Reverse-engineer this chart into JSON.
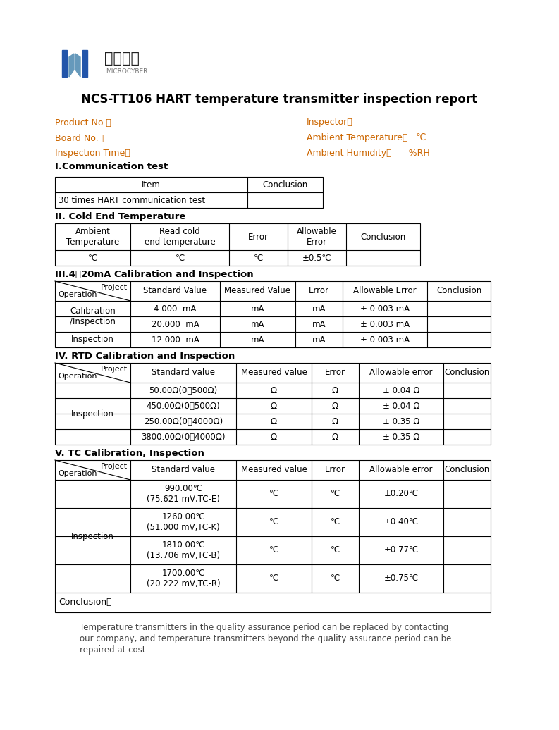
{
  "title": "NCS-TT106 HART temperature transmitter inspection report",
  "logo_text_cn": "中科博微",
  "logo_text_en": "MICROCYBER",
  "field_left1": "Product No.：",
  "field_left2": "Board No.：",
  "field_left3": "Inspection Time：",
  "field_right1": "Inspector：",
  "field_right2": "Ambient Temperature：   ℃",
  "field_right3": "Ambient Humidity：      %RH",
  "section1_title": "I.Communication test",
  "comm_header1": "Item",
  "comm_header2": "Conclusion",
  "comm_row1": "30 times HART communication test",
  "section2_title": "II. Cold End Temperature",
  "cold_h1": "Ambient\nTemperature",
  "cold_h2": "Read cold\nend temperature",
  "cold_h3": "Error",
  "cold_h4": "Allowable\nError",
  "cold_h5": "Conclusion",
  "cold_d1": "℃",
  "cold_d2": "℃",
  "cold_d3": "℃",
  "cold_d4": "±0.5℃",
  "cold_d5": "",
  "section3_title": "III.4～20mA Calibration and Inspection",
  "ma_h1": "Standard Value",
  "ma_h2": "Measured Value",
  "ma_h3": "Error",
  "ma_h4": "Allowable Error",
  "ma_h5": "Conclusion",
  "ma_r1_op": "Calibration\n/Inspection",
  "ma_r1_sv": "4.000  mA",
  "ma_r1_mv": "mA",
  "ma_r1_er": "mA",
  "ma_r1_ae": "± 0.003 mA",
  "ma_r2_sv": "20.000  mA",
  "ma_r2_mv": "mA",
  "ma_r2_er": "mA",
  "ma_r2_ae": "± 0.003 mA",
  "ma_r3_op": "Inspection",
  "ma_r3_sv": "12.000  mA",
  "ma_r3_mv": "mA",
  "ma_r3_er": "mA",
  "ma_r3_ae": "± 0.003 mA",
  "section4_title": "IV. RTD Calibration and Inspection",
  "rtd_h1": "Standard value",
  "rtd_h2": "Measured value",
  "rtd_h3": "Error",
  "rtd_h4": "Allowable error",
  "rtd_h5": "Conclusion",
  "rtd_r1_sv": "50.00Ω(0～500Ω)",
  "rtd_r1_mv": "Ω",
  "rtd_r1_er": "Ω",
  "rtd_r1_ae": "± 0.04 Ω",
  "rtd_r2_sv": "450.00Ω(0～500Ω)",
  "rtd_r2_mv": "Ω",
  "rtd_r2_er": "Ω",
  "rtd_r2_ae": "± 0.04 Ω",
  "rtd_r3_sv": "250.00Ω(0～4000Ω)",
  "rtd_r3_mv": "Ω",
  "rtd_r3_er": "Ω",
  "rtd_r3_ae": "± 0.35 Ω",
  "rtd_r4_sv": "3800.00Ω(0～4000Ω)",
  "rtd_r4_mv": "Ω",
  "rtd_r4_er": "Ω",
  "rtd_r4_ae": "± 0.35 Ω",
  "section5_title": "V. TC Calibration, Inspection",
  "tc_h1": "Standard value",
  "tc_h2": "Measured value",
  "tc_h3": "Error",
  "tc_h4": "Allowable error",
  "tc_h5": "Conclusion",
  "tc_r1_sv": "990.00℃\n(75.621 mV,TC-E)",
  "tc_r1_mv": "℃",
  "tc_r1_er": "℃",
  "tc_r1_ae": "±0.20℃",
  "tc_r2_sv": "1260.00℃\n(51.000 mV,TC-K)",
  "tc_r2_mv": "℃",
  "tc_r2_er": "℃",
  "tc_r2_ae": "±0.40℃",
  "tc_r3_sv": "1810.00℃\n(13.706 mV,TC-B)",
  "tc_r3_mv": "℃",
  "tc_r3_er": "℃",
  "tc_r3_ae": "±0.77℃",
  "tc_r4_sv": "1700.00℃\n(20.222 mV,TC-R)",
  "tc_r4_mv": "℃",
  "tc_r4_er": "℃",
  "tc_r4_ae": "±0.75℃",
  "conclusion_label": "Conclusion：",
  "footer_line1": "Temperature transmitters in the quality assurance period can be replaced by contacting",
  "footer_line2": "our company, and temperature transmitters beyond the quality assurance period can be",
  "footer_line3": "repaired at cost.",
  "blue": "#2255AA",
  "orange": "#CC6600",
  "black": "#000000",
  "white": "#FFFFFF",
  "lw": 0.8
}
